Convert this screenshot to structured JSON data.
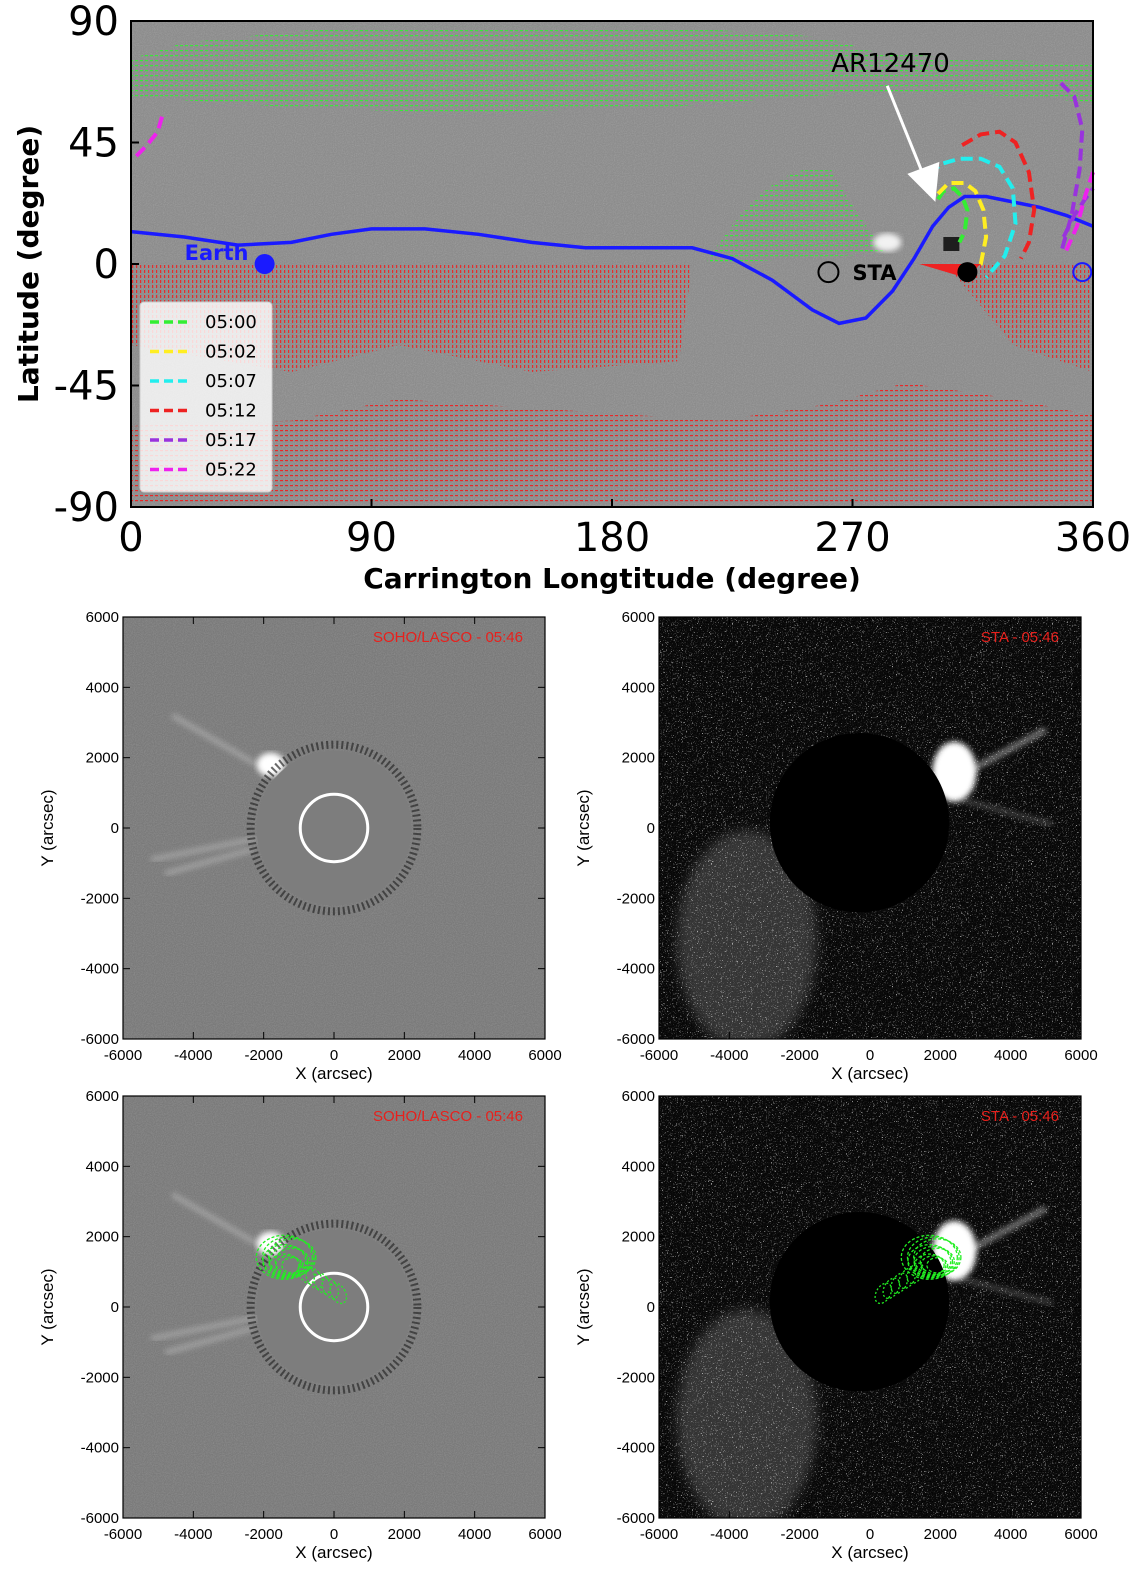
{
  "chart_data": [
    {
      "type": "line",
      "panel": "carrington-map",
      "xlabel": "Carrington Longtitude (degree)",
      "ylabel": "Latitude (degree)",
      "xlim": [
        0,
        360
      ],
      "ylim": [
        -90,
        90
      ],
      "xticks": [
        "0",
        "90",
        "180",
        "270",
        "360"
      ],
      "yticks": [
        "90",
        "45",
        "0",
        "-45",
        "-90"
      ],
      "annotations": {
        "active_region": "AR12470",
        "earth": "Earth",
        "sta": "STA"
      },
      "points": {
        "earth": {
          "x": 50,
          "y": 0
        },
        "sta_open": {
          "x": 261,
          "y": -3
        },
        "sta_filled": {
          "x": 313,
          "y": -3
        },
        "earth_far": {
          "x": 356,
          "y": -3
        },
        "ar_arrow_start": {
          "x": 283,
          "y": 66
        },
        "ar_arrow_end": {
          "x": 301,
          "y": 23
        }
      },
      "neutral_line": {
        "name": "",
        "color": "#1a1aff",
        "x": [
          0,
          20,
          40,
          60,
          75,
          90,
          110,
          130,
          150,
          170,
          190,
          210,
          225,
          240,
          255,
          265,
          275,
          285,
          293,
          300,
          306,
          312,
          320,
          330,
          340,
          350,
          360
        ],
        "y": [
          12,
          10,
          7,
          8,
          11,
          13,
          13,
          11,
          8,
          6,
          6,
          6,
          2,
          -6,
          -17,
          -22,
          -20,
          -10,
          2,
          14,
          21,
          25,
          25,
          23,
          21,
          18,
          14
        ]
      },
      "series": [
        {
          "name": "05:00",
          "color": "#33ee33",
          "x": [
            302,
            304,
            308,
            311,
            313,
            312,
            310
          ],
          "y": [
            24,
            27,
            28,
            25,
            20,
            12,
            8
          ]
        },
        {
          "name": "05:02",
          "color": "#ffee22",
          "x": [
            302,
            306,
            312,
            316,
            319,
            320,
            318,
            313
          ],
          "y": [
            26,
            30,
            30,
            27,
            20,
            10,
            0,
            -3
          ]
        },
        {
          "name": "05:07",
          "color": "#22eeee",
          "x": [
            299,
            303,
            310,
            318,
            325,
            330,
            331,
            327,
            320
          ],
          "y": [
            33,
            37,
            39,
            39,
            36,
            28,
            15,
            3,
            -5
          ]
        },
        {
          "name": "05:12",
          "color": "#ee2222",
          "x": [
            311,
            318,
            325,
            331,
            336,
            338,
            336,
            333
          ],
          "y": [
            44,
            48,
            49,
            45,
            34,
            20,
            8,
            2
          ]
        },
        {
          "name": "05:17",
          "color": "#9933dd",
          "x": [
            348,
            353,
            356,
            355,
            352,
            348
          ],
          "y": [
            67,
            62,
            50,
            35,
            18,
            4
          ]
        },
        {
          "name": "05:22",
          "color": "#ee22ee",
          "x": [
            2,
            6,
            10,
            12
          ],
          "y": [
            40,
            44,
            49,
            56
          ]
        },
        {
          "name": "",
          "color": "#9933dd",
          "x": [
            349,
            353,
            357,
            360
          ],
          "y": [
            10,
            18,
            24,
            28
          ]
        },
        {
          "name": "",
          "color": "#ee22ee",
          "x": [
            350,
            354,
            357,
            360
          ],
          "y": [
            5,
            14,
            25,
            34
          ]
        }
      ]
    },
    {
      "type": "heatmap",
      "panel": "lasco-top",
      "title": "SOHO/LASCO - 05:46",
      "xlabel": "X (arcsec)",
      "ylabel": "Y (arcsec)",
      "xlim": [
        -6000,
        6000
      ],
      "ylim": [
        -6000,
        6000
      ],
      "xticks": [
        "-6000",
        "-4000",
        "-2000",
        "0",
        "2000",
        "4000",
        "6000"
      ],
      "yticks": [
        "6000",
        "4000",
        "2000",
        "0",
        "-2000",
        "-4000",
        "-6000"
      ],
      "occulter_radius": 2200,
      "limb_radius": 960,
      "contours": false
    },
    {
      "type": "heatmap",
      "panel": "sta-top",
      "title": "STA - 05:46",
      "xlabel": "X (arcsec)",
      "ylabel": "Y (arcsec)",
      "xlim": [
        -6000,
        6000
      ],
      "ylim": [
        -6000,
        6000
      ],
      "xticks": [
        "-6000",
        "-4000",
        "-2000",
        "0",
        "2000",
        "4000",
        "6000"
      ],
      "yticks": [
        "6000",
        "4000",
        "2000",
        "0",
        "-2000",
        "-4000",
        "-6000"
      ],
      "occulter_center": [
        -300,
        150
      ],
      "occulter_radius": 2550,
      "contours": false
    },
    {
      "type": "heatmap",
      "panel": "lasco-bottom",
      "title": "SOHO/LASCO - 05:46",
      "xlabel": "X (arcsec)",
      "ylabel": "Y (arcsec)",
      "xlim": [
        -6000,
        6000
      ],
      "ylim": [
        -6000,
        6000
      ],
      "xticks": [
        "-6000",
        "-4000",
        "-2000",
        "0",
        "2000",
        "4000",
        "6000"
      ],
      "yticks": [
        "6000",
        "4000",
        "2000",
        "0",
        "-2000",
        "-4000",
        "-6000"
      ],
      "occulter_radius": 2200,
      "limb_radius": 960,
      "contours": true,
      "contour_center": [
        -1300,
        1300
      ]
    },
    {
      "type": "heatmap",
      "panel": "sta-bottom",
      "title": "STA - 05:46",
      "xlabel": "X (arcsec)",
      "ylabel": "Y (arcsec)",
      "xlim": [
        -6000,
        6000
      ],
      "ylim": [
        -6000,
        6000
      ],
      "xticks": [
        "-6000",
        "-4000",
        "-2000",
        "0",
        "2000",
        "4000",
        "6000"
      ],
      "yticks": [
        "6000",
        "4000",
        "2000",
        "0",
        "-2000",
        "-4000",
        "-6000"
      ],
      "occulter_center": [
        -300,
        150
      ],
      "occulter_radius": 2550,
      "contours": true,
      "contour_center": [
        1800,
        1300
      ]
    }
  ],
  "colors": {
    "map_background": "#8c8c8c",
    "lasco_background": "#7a7a7a",
    "sta_background": "#111111",
    "open_field_north": "#33ee33",
    "open_field_south": "#ee2222",
    "neutral_line": "#1a1aff",
    "contour": "#22ee22",
    "panel_title": "#e8201c"
  }
}
